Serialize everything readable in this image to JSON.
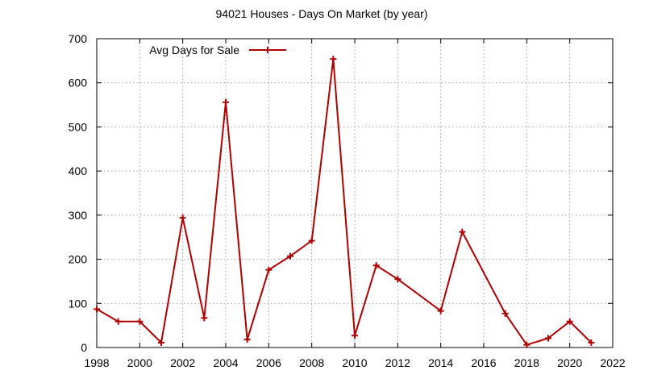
{
  "chart_data": {
    "type": "line",
    "title": "94021 Houses - Days On Market (by year)",
    "xlabel": "",
    "ylabel": "",
    "xlim": [
      1998,
      2022
    ],
    "ylim": [
      0,
      700
    ],
    "xticks": [
      1998,
      2000,
      2002,
      2004,
      2006,
      2008,
      2010,
      2012,
      2014,
      2016,
      2018,
      2020,
      2022
    ],
    "yticks": [
      0,
      100,
      200,
      300,
      400,
      500,
      600,
      700
    ],
    "grid": true,
    "legend_position": "top-left",
    "series": [
      {
        "name": "Avg Days for Sale",
        "color": "#b00000",
        "marker": "plus",
        "x": [
          1998,
          1999,
          2000,
          2001,
          2002,
          2003,
          2004,
          2005,
          2006,
          2007,
          2008,
          2009,
          2010,
          2011,
          2012,
          2014,
          2015,
          2017,
          2018,
          2019,
          2020,
          2021
        ],
        "y": [
          87,
          59,
          59,
          11,
          294,
          67,
          556,
          18,
          176,
          207,
          242,
          654,
          27,
          186,
          155,
          83,
          262,
          77,
          6,
          21,
          59,
          11
        ]
      }
    ]
  }
}
